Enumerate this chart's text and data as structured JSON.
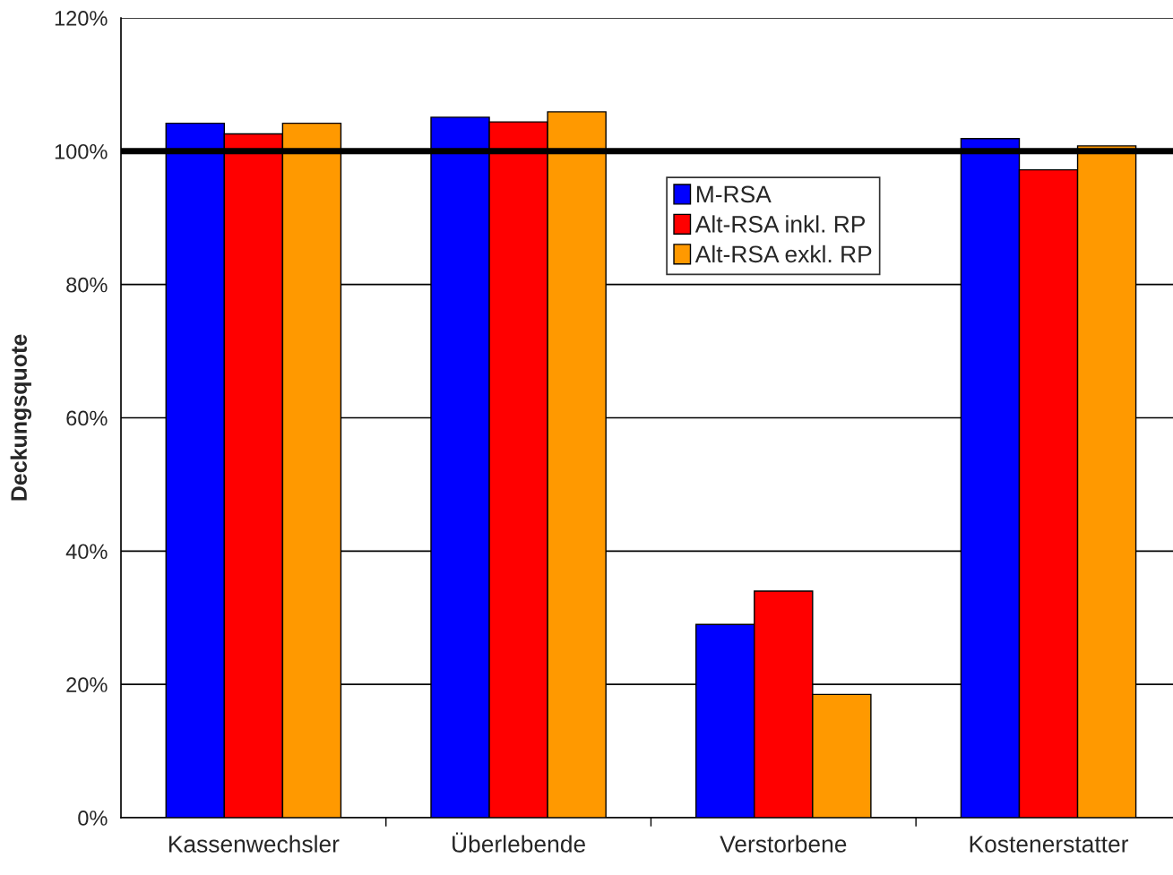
{
  "chart_data": {
    "type": "bar",
    "ylabel": "Deckungsquote",
    "categories": [
      "Kassenwechsler",
      "Überlebende",
      "Verstorbene",
      "Kostenerstatter"
    ],
    "series": [
      {
        "name": "M-RSA",
        "color": "#0000ff",
        "values": [
          104.2,
          105.1,
          29.0,
          101.9
        ]
      },
      {
        "name": "Alt-RSA inkl. RP",
        "color": "#ff0000",
        "values": [
          102.6,
          104.4,
          34.0,
          97.2
        ]
      },
      {
        "name": "Alt-RSA exkl. RP",
        "color": "#ff9900",
        "values": [
          104.2,
          105.9,
          18.5,
          100.8
        ]
      }
    ],
    "ylim": [
      0,
      120
    ],
    "yticks": [
      {
        "value": 0,
        "label": "0%"
      },
      {
        "value": 20,
        "label": "20%"
      },
      {
        "value": 40,
        "label": "40%"
      },
      {
        "value": 60,
        "label": "60%"
      },
      {
        "value": 80,
        "label": "80%"
      },
      {
        "value": 100,
        "label": "100%"
      },
      {
        "value": 120,
        "label": "120%"
      }
    ],
    "ref_lines": [
      {
        "axis": "y",
        "value": 100,
        "color": "#000000"
      }
    ],
    "grid": "y",
    "legend": "center right"
  }
}
